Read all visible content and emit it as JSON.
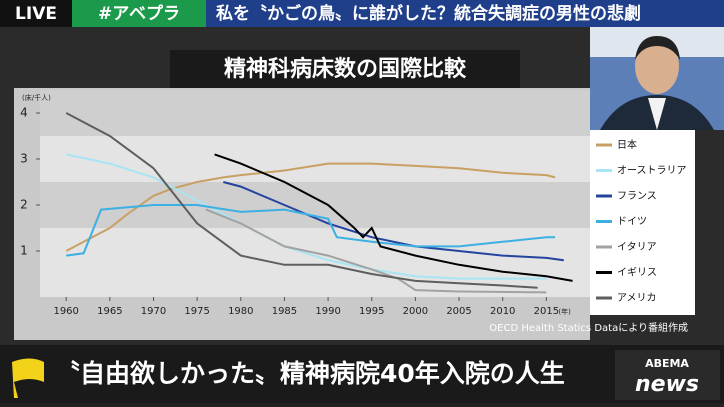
{
  "header": {
    "live": "LIVE",
    "hashtag": "#アベプラ",
    "headline": "私を〝かごの鳥〟に誰がした？統合失調症の男性の悲劇"
  },
  "footer": {
    "caption": "〝自由欲しかった〟精神病院40年入院の人生",
    "logo_top": "ABEMA",
    "logo_bottom": "news"
  },
  "chart_data": {
    "type": "line",
    "title": "精神科病床数の国際比較",
    "y_label": "(床/千人)",
    "x_label": "(年)",
    "source": "OECD Health Statics Dataにより番組作成",
    "xlim": [
      1957,
      2020
    ],
    "xticks": [
      1960,
      1965,
      1970,
      1975,
      1980,
      1985,
      1990,
      1995,
      2000,
      2005,
      2010,
      2015
    ],
    "ylim": [
      0,
      4.5
    ],
    "yticks": [
      1,
      2,
      3,
      4
    ],
    "series": [
      {
        "name": "日本",
        "color": "#c9a064",
        "x": [
          1960,
          1962,
          1965,
          1967,
          1970,
          1972,
          1975,
          1978,
          1980,
          1985,
          1990,
          1995,
          2000,
          2005,
          2010,
          2015,
          2016
        ],
        "values": [
          1.0,
          1.2,
          1.5,
          1.8,
          2.2,
          2.35,
          2.5,
          2.6,
          2.65,
          2.75,
          2.9,
          2.9,
          2.85,
          2.8,
          2.7,
          2.65,
          2.6
        ]
      },
      {
        "name": "オーストラリア",
        "color": "#a8e4f4",
        "x": [
          1960,
          1965,
          1970,
          1975,
          1980,
          1985,
          1990,
          1995,
          2000,
          2005,
          2010,
          2015
        ],
        "values": [
          3.1,
          2.9,
          2.6,
          2.1,
          1.6,
          1.1,
          0.8,
          0.6,
          0.45,
          0.4,
          0.4,
          0.4
        ]
      },
      {
        "name": "フランス",
        "color": "#23439e",
        "x": [
          1978,
          1980,
          1985,
          1990,
          1995,
          2000,
          2005,
          2010,
          2015,
          2017
        ],
        "values": [
          2.5,
          2.4,
          2.0,
          1.6,
          1.3,
          1.1,
          1.0,
          0.9,
          0.85,
          0.8
        ]
      },
      {
        "name": "ドイツ",
        "color": "#3cb0e2",
        "x": [
          1960,
          1962,
          1964,
          1970,
          1975,
          1980,
          1985,
          1990,
          1991,
          1995,
          2000,
          2005,
          2010,
          2015,
          2016
        ],
        "values": [
          0.9,
          0.95,
          1.9,
          2.0,
          2.0,
          1.85,
          1.9,
          1.7,
          1.3,
          1.2,
          1.1,
          1.1,
          1.2,
          1.3,
          1.3
        ]
      },
      {
        "name": "イタリア",
        "color": "#a2a2a2",
        "x": [
          1976,
          1980,
          1985,
          1990,
          1995,
          1998,
          2000,
          2005,
          2015
        ],
        "values": [
          1.9,
          1.6,
          1.1,
          0.9,
          0.6,
          0.4,
          0.15,
          0.12,
          0.1
        ]
      },
      {
        "name": "イギリス",
        "color": "#000000",
        "x": [
          1977,
          1980,
          1985,
          1990,
          1993,
          1994,
          1995,
          1996,
          2000,
          2005,
          2010,
          2015,
          2018
        ],
        "values": [
          3.1,
          2.9,
          2.5,
          2.0,
          1.5,
          1.3,
          1.5,
          1.1,
          0.9,
          0.7,
          0.55,
          0.45,
          0.35
        ]
      },
      {
        "name": "アメリカ",
        "color": "#5e5e5e",
        "x": [
          1960,
          1965,
          1970,
          1975,
          1980,
          1985,
          1990,
          1995,
          2000,
          2005,
          2010,
          2014
        ],
        "values": [
          4.0,
          3.5,
          2.8,
          1.6,
          0.9,
          0.7,
          0.7,
          0.5,
          0.35,
          0.3,
          0.25,
          0.2
        ]
      }
    ]
  }
}
